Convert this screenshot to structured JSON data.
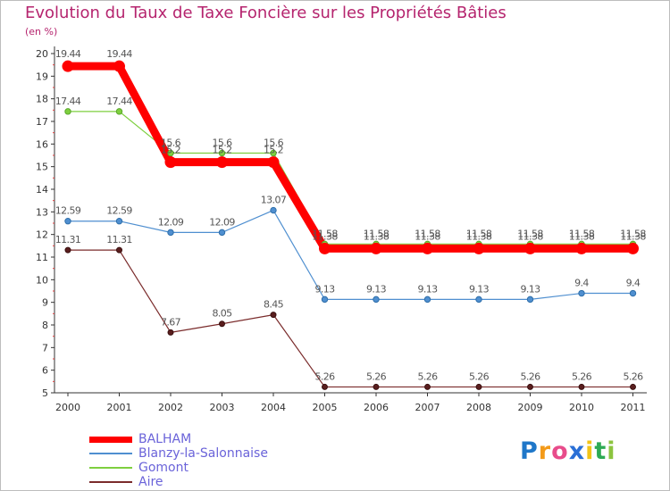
{
  "chart_data": {
    "type": "line",
    "title": "Evolution du Taux de Taxe Foncière sur les Propriétés Bâties",
    "ylabel": "(en %)",
    "xlabel": "",
    "x": [
      "2000",
      "2001",
      "2002",
      "2003",
      "2004",
      "2005",
      "2006",
      "2007",
      "2008",
      "2009",
      "2010",
      "2011"
    ],
    "ylim": [
      5,
      20
    ],
    "yticks": [
      5,
      6,
      7,
      8,
      9,
      10,
      11,
      12,
      13,
      14,
      15,
      16,
      17,
      18,
      19,
      20
    ],
    "grid": false,
    "series": [
      {
        "name": "BALHAM",
        "color": "#ff0000",
        "values": [
          19.44,
          19.44,
          15.2,
          15.2,
          15.2,
          11.38,
          11.38,
          11.38,
          11.38,
          11.38,
          11.38,
          11.38
        ],
        "labels": [
          "19.44",
          "19.44",
          "15.2",
          "15.2",
          "15.2",
          "11.38",
          "11.38",
          "11.38",
          "11.38",
          "11.38",
          "11.38",
          "11.38"
        ]
      },
      {
        "name": "Blanzy-la-Salonnaise",
        "color": "#4f8fd0",
        "values": [
          12.59,
          12.59,
          12.09,
          12.09,
          13.07,
          9.13,
          9.13,
          9.13,
          9.13,
          9.13,
          9.4,
          9.4
        ],
        "labels": [
          "12.59",
          "12.59",
          "12.09",
          "12.09",
          "13.07",
          "9.13",
          "9.13",
          "9.13",
          "9.13",
          "9.13",
          "9.4",
          "9.4"
        ]
      },
      {
        "name": "Gomont",
        "color": "#7ecf3f",
        "values": [
          17.44,
          17.44,
          15.6,
          15.6,
          15.6,
          11.58,
          11.58,
          11.58,
          11.58,
          11.58,
          11.58,
          11.58
        ],
        "labels": [
          "17.44",
          "17.44",
          "15.6",
          "15.6",
          "15.6",
          "11.58",
          "11.58",
          "11.58",
          "11.58",
          "11.58",
          "11.58",
          "11.58"
        ]
      },
      {
        "name": "Aire",
        "color": "#7a2b2b",
        "values": [
          11.31,
          11.31,
          7.67,
          8.05,
          8.45,
          5.26,
          5.26,
          5.26,
          5.26,
          5.26,
          5.26,
          5.26
        ],
        "labels": [
          "11.31",
          "11.31",
          "7.67",
          "8.05",
          "8.45",
          "5.26",
          "5.26",
          "5.26",
          "5.26",
          "5.26",
          "5.26",
          "5.26"
        ]
      }
    ],
    "legend_position": "bottom-left"
  },
  "logo": {
    "letters": [
      "P",
      "r",
      "o",
      "x",
      "i",
      "t",
      "i"
    ]
  }
}
